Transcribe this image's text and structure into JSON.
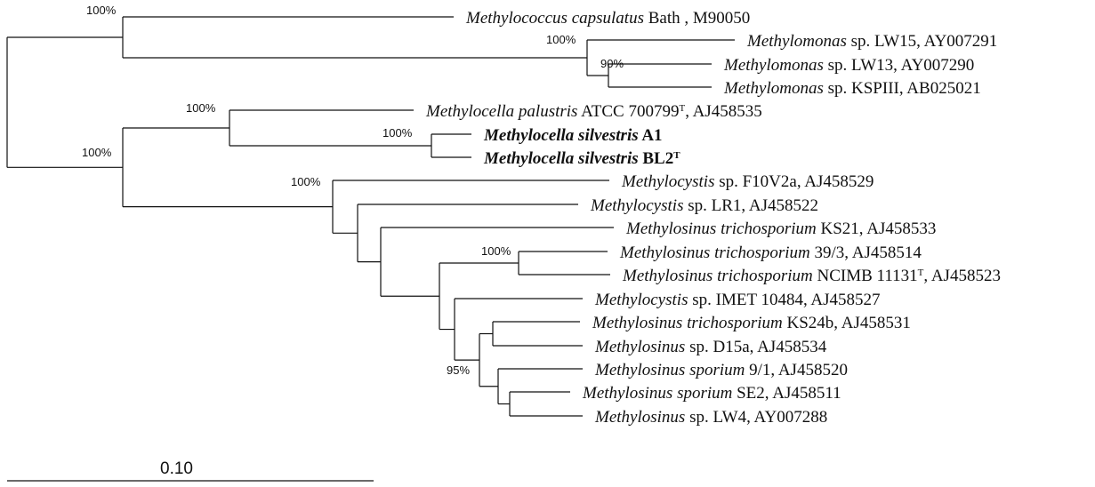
{
  "taxa": [
    {
      "parts": [
        {
          "t": "Methylococcus capsulatus",
          "i": true
        },
        {
          "t": " Bath , M90050"
        }
      ]
    },
    {
      "parts": [
        {
          "t": "Methylomonas",
          "i": true
        },
        {
          "t": " sp. LW15, AY007291"
        }
      ]
    },
    {
      "parts": [
        {
          "t": "Methylomonas",
          "i": true
        },
        {
          "t": " sp. LW13, AY007290"
        }
      ]
    },
    {
      "parts": [
        {
          "t": "Methylomonas",
          "i": true
        },
        {
          "t": " sp. KSPIII, AB025021"
        }
      ]
    },
    {
      "parts": [
        {
          "t": "Methylocella palustris",
          "i": true
        },
        {
          "t": " ATCC 700799"
        },
        {
          "t": "T",
          "sup": true
        },
        {
          "t": ", AJ458535"
        }
      ]
    },
    {
      "bold": true,
      "parts": [
        {
          "t": "Methylocella silvestris",
          "i": true
        },
        {
          "t": " A1"
        }
      ]
    },
    {
      "bold": true,
      "parts": [
        {
          "t": "Methylocella silvestris",
          "i": true
        },
        {
          "t": " BL2"
        },
        {
          "t": "T",
          "sup": true
        }
      ]
    },
    {
      "parts": [
        {
          "t": "Methylocystis",
          "i": true
        },
        {
          "t": " sp. F10V2a, AJ458529"
        }
      ]
    },
    {
      "parts": [
        {
          "t": "Methylocystis",
          "i": true
        },
        {
          "t": " sp. LR1, AJ458522"
        }
      ]
    },
    {
      "parts": [
        {
          "t": "Methylosinus trichosporium",
          "i": true
        },
        {
          "t": " KS21, AJ458533"
        }
      ]
    },
    {
      "parts": [
        {
          "t": "Methylosinus trichosporium",
          "i": true
        },
        {
          "t": " 39/3, AJ458514"
        }
      ]
    },
    {
      "parts": [
        {
          "t": "Methylosinus trichosporium",
          "i": true
        },
        {
          "t": " NCIMB 11131"
        },
        {
          "t": "T",
          "sup": true
        },
        {
          "t": ", AJ458523"
        }
      ]
    },
    {
      "parts": [
        {
          "t": "Methylocystis",
          "i": true
        },
        {
          "t": " sp. IMET 10484, AJ458527"
        }
      ]
    },
    {
      "parts": [
        {
          "t": "Methylosinus trichosporium",
          "i": true
        },
        {
          "t": " KS24b, AJ458531"
        }
      ]
    },
    {
      "parts": [
        {
          "t": "Methylosinus",
          "i": true
        },
        {
          "t": " sp. D15a, AJ458534"
        }
      ]
    },
    {
      "parts": [
        {
          "t": "Methylosinus sporium",
          "i": true
        },
        {
          "t": " 9/1, AJ458520"
        }
      ]
    },
    {
      "parts": [
        {
          "t": "Methylosinus sporium",
          "i": true
        },
        {
          "t": " SE2, AJ458511"
        }
      ]
    },
    {
      "parts": [
        {
          "t": "Methylosinus",
          "i": true
        },
        {
          "t": " sp. LW4, AY007288"
        }
      ]
    }
  ],
  "bootstrap": [
    "100%",
    "100%",
    "90%",
    "100%",
    "100%",
    "100%",
    "100%",
    "100%",
    "95%"
  ],
  "scale_bar": {
    "label": "0.10",
    "value": 0.1
  }
}
